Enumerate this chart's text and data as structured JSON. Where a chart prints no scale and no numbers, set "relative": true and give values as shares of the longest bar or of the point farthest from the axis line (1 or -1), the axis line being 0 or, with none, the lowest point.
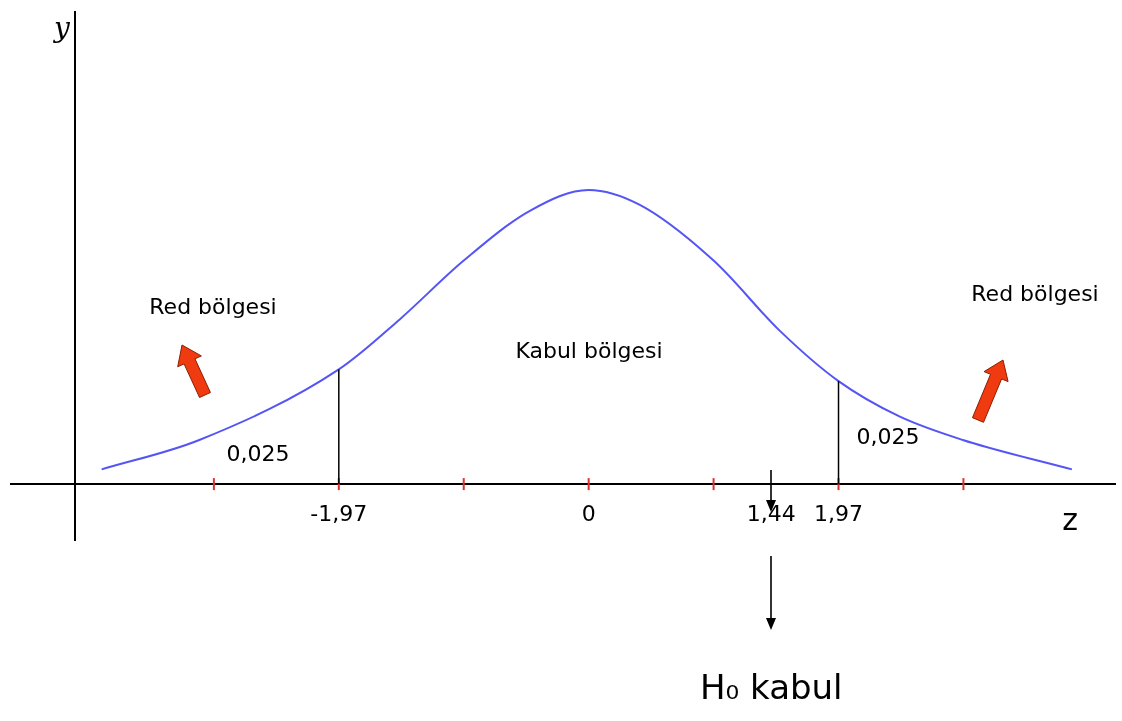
{
  "chart_data": {
    "type": "line",
    "relative": true,
    "xlabel": "z",
    "marker": "none",
    "xlim": [
      -4.05,
      4.15
    ],
    "xticks": [
      {
        "value": -2.955,
        "label": null
      },
      {
        "value": -1.97,
        "label": "-1,97"
      },
      {
        "value": -0.985,
        "label": null
      },
      {
        "value": 0,
        "label": "0"
      },
      {
        "value": 0.985,
        "label": null
      },
      {
        "value": 1.44,
        "label": "1,44"
      },
      {
        "value": 1.97,
        "label": "1,97"
      },
      {
        "value": 2.955,
        "label": null
      }
    ],
    "x": [
      -3.84,
      -3.07,
      -1.97,
      -1.49,
      -0.985,
      -0.46,
      0,
      0.4,
      0.985,
      1.51,
      1.97,
      2.45,
      2.95,
      3.81
    ],
    "series": [
      {
        "color": "#5555f5",
        "values": [
          0.05,
          0.15,
          0.39,
          0.56,
          0.76,
          0.93,
          1,
          0.95,
          0.76,
          0.52,
          0.35,
          0.23,
          0.15,
          0.05
        ]
      }
    ],
    "ref_lines": [
      {
        "axis": "x",
        "value": -1.97,
        "color": "#000000"
      },
      {
        "axis": "x",
        "value": 1.97,
        "color": "#000000"
      }
    ],
    "annotations": [
      "Red bölgesi",
      "Kabul bölgesi",
      "Red bölgesi",
      "0,025",
      "0,025",
      "H₀ kabul",
      "y"
    ]
  }
}
